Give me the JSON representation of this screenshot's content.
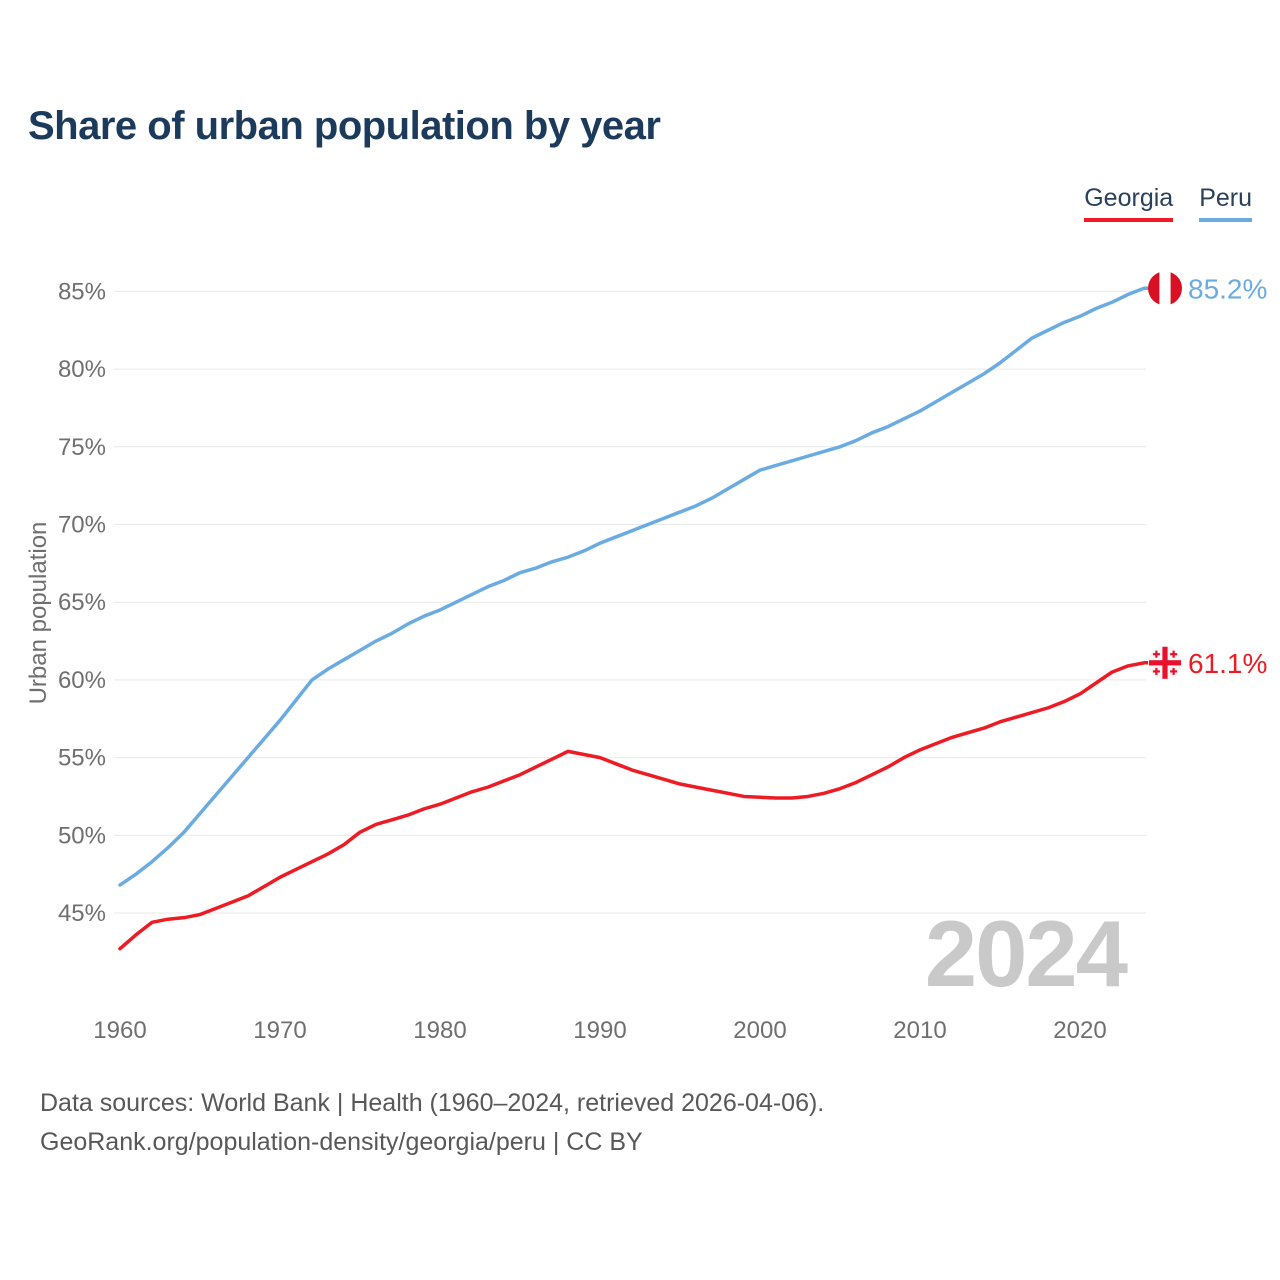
{
  "header": {
    "title": "Share of urban population by year"
  },
  "legend": [
    {
      "label": "Georgia",
      "color": "#ed1c24"
    },
    {
      "label": "Peru",
      "color": "#6aabe2"
    }
  ],
  "watermark": "2024",
  "footer": {
    "line1": "Data sources: World Bank | Health (1960–2024, retrieved 2026-04-06).",
    "line2": "GeoRank.org/population-density/georgia/peru | CC BY"
  },
  "flag_colors": {
    "peru_red": "#d91023",
    "georgia_cross_red": "#e8112d"
  },
  "chart_data": {
    "type": "line",
    "title": "Share of urban population by year",
    "xlabel": "",
    "ylabel": "Urban population",
    "grid": "horizontal",
    "legend_position": "top-right",
    "xlim": [
      1960,
      2024
    ],
    "ylim": [
      42,
      87
    ],
    "x_ticks": [
      1960,
      1970,
      1980,
      1990,
      2000,
      2010,
      2020
    ],
    "y_ticks": [
      45,
      50,
      55,
      60,
      65,
      70,
      75,
      80,
      85
    ],
    "y_tick_suffix": "%",
    "x": [
      1960,
      1961,
      1962,
      1963,
      1964,
      1965,
      1966,
      1967,
      1968,
      1969,
      1970,
      1971,
      1972,
      1973,
      1974,
      1975,
      1976,
      1977,
      1978,
      1979,
      1980,
      1981,
      1982,
      1983,
      1984,
      1985,
      1986,
      1987,
      1988,
      1989,
      1990,
      1991,
      1992,
      1993,
      1994,
      1995,
      1996,
      1997,
      1998,
      1999,
      2000,
      2001,
      2002,
      2003,
      2004,
      2005,
      2006,
      2007,
      2008,
      2009,
      2010,
      2011,
      2012,
      2013,
      2014,
      2015,
      2016,
      2017,
      2018,
      2019,
      2020,
      2021,
      2022,
      2023,
      2024
    ],
    "series": [
      {
        "name": "Georgia",
        "color": "#ed1c24",
        "end_label": "61.1%",
        "flag": "georgia",
        "values": [
          42.7,
          43.6,
          44.4,
          44.6,
          44.7,
          44.9,
          45.3,
          45.7,
          46.1,
          46.7,
          47.3,
          47.8,
          48.3,
          48.8,
          49.4,
          50.2,
          50.7,
          51.0,
          51.3,
          51.7,
          52.0,
          52.4,
          52.8,
          53.1,
          53.5,
          53.9,
          54.4,
          54.9,
          55.4,
          55.2,
          55.0,
          54.6,
          54.2,
          53.9,
          53.6,
          53.3,
          53.1,
          52.9,
          52.7,
          52.5,
          52.45,
          52.4,
          52.4,
          52.5,
          52.7,
          53.0,
          53.4,
          53.9,
          54.4,
          55.0,
          55.5,
          55.9,
          56.3,
          56.6,
          56.9,
          57.3,
          57.6,
          57.9,
          58.2,
          58.6,
          59.1,
          59.8,
          60.5,
          60.9,
          61.1
        ]
      },
      {
        "name": "Peru",
        "color": "#6aabe2",
        "end_label": "85.2%",
        "flag": "peru",
        "values": [
          46.8,
          47.5,
          48.3,
          49.2,
          50.2,
          51.4,
          52.6,
          53.8,
          55.0,
          56.2,
          57.4,
          58.7,
          60.0,
          60.7,
          61.3,
          61.9,
          62.5,
          63.0,
          63.6,
          64.1,
          64.5,
          65.0,
          65.5,
          66.0,
          66.4,
          66.9,
          67.2,
          67.6,
          67.9,
          68.3,
          68.8,
          69.2,
          69.6,
          70.0,
          70.4,
          70.8,
          71.2,
          71.7,
          72.3,
          72.9,
          73.5,
          73.8,
          74.1,
          74.4,
          74.7,
          75.0,
          75.4,
          75.9,
          76.3,
          76.8,
          77.3,
          77.9,
          78.5,
          79.1,
          79.7,
          80.4,
          81.2,
          82.0,
          82.5,
          83.0,
          83.4,
          83.9,
          84.3,
          84.8,
          85.2
        ]
      }
    ]
  }
}
